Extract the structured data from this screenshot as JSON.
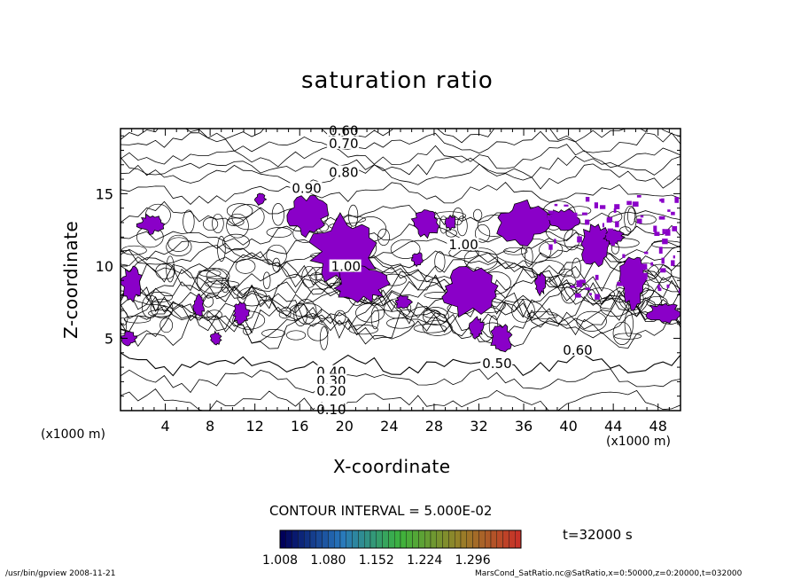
{
  "chart_data": {
    "type": "contour",
    "title": "saturation ratio",
    "xlabel": "X-coordinate",
    "ylabel": "Z-coordinate",
    "x_unit": "(x1000 m)",
    "y_unit": "(x1000 m)",
    "xlim": [
      0,
      50
    ],
    "ylim": [
      0,
      19.5
    ],
    "x_ticks": [
      4,
      8,
      12,
      16,
      20,
      24,
      28,
      32,
      36,
      40,
      44,
      48
    ],
    "y_ticks": [
      5,
      10,
      15
    ],
    "contour_interval_text": "CONTOUR INTERVAL = 5.000E-02",
    "contour_labels": [
      {
        "text": "0.60",
        "x": 18.6,
        "z": 19.3
      },
      {
        "text": "0.70",
        "x": 18.6,
        "z": 18.4
      },
      {
        "text": "0.80",
        "x": 18.6,
        "z": 16.4
      },
      {
        "text": "0.90",
        "x": 15.3,
        "z": 15.3
      },
      {
        "text": "1.00",
        "x": 29.3,
        "z": 11.4
      },
      {
        "text": "1.00",
        "x": 18.8,
        "z": 9.9
      },
      {
        "text": "0.60",
        "x": 39.5,
        "z": 4.1
      },
      {
        "text": "0.50",
        "x": 32.3,
        "z": 3.2
      },
      {
        "text": "0.40",
        "x": 17.5,
        "z": 2.6
      },
      {
        "text": "0.30",
        "x": 17.5,
        "z": 2.0
      },
      {
        "text": "0.20",
        "x": 17.5,
        "z": 1.3
      },
      {
        "text": "0.10",
        "x": 17.5,
        "z": 0.0
      }
    ],
    "shading": {
      "threshold": 1.0,
      "color": "#8a00c8"
    },
    "colorbar": {
      "labels": [
        "1.008",
        "1.080",
        "1.152",
        "1.224",
        "1.296"
      ],
      "range": [
        1.008,
        1.368
      ]
    },
    "time_label": "t=32000 s"
  },
  "footer": {
    "left": "/usr/bin/gpview   2008-11-21",
    "right": "MarsCond_SatRatio.nc@SatRatio,x=0:50000,z=0:20000,t=032000"
  }
}
